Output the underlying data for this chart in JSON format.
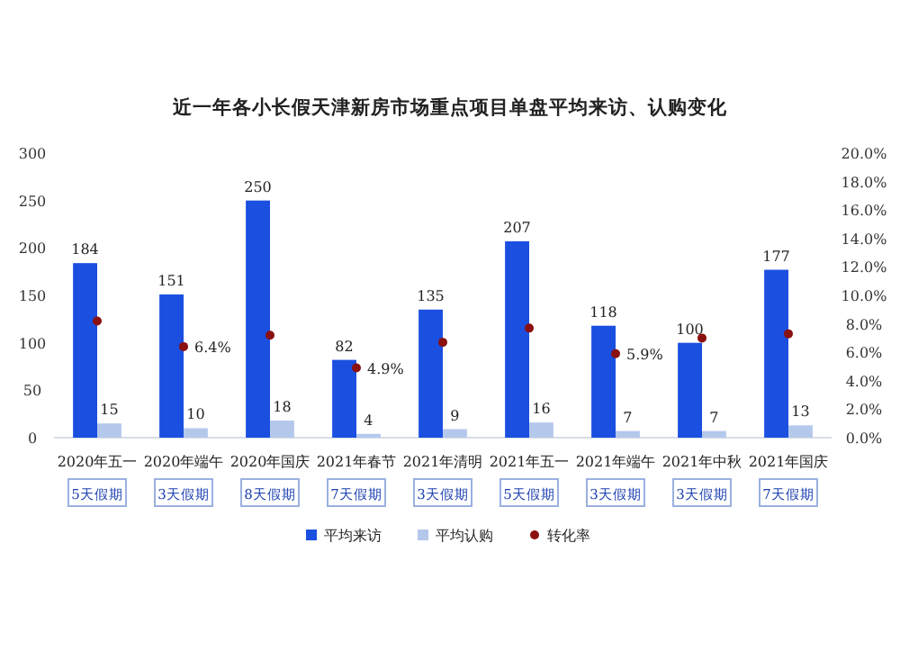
{
  "chart_data": {
    "type": "bar",
    "title": "近一年各小长假天津新房市场重点项目单盘平均来访、认购变化",
    "categories": [
      "2020年五一",
      "2020年端午",
      "2020年国庆",
      "2021年春节",
      "2021年清明",
      "2021年五一",
      "2021年端午",
      "2021年中秋",
      "2021年国庆"
    ],
    "annotations": [
      "5天假期",
      "3天假期",
      "8天假期",
      "7天假期",
      "3天假期",
      "5天假期",
      "3天假期",
      "3天假期",
      "7天假期"
    ],
    "series": [
      {
        "name": "平均来访",
        "color": "#1a4fe0",
        "values": [
          184,
          151,
          250,
          82,
          135,
          207,
          118,
          100,
          177
        ]
      },
      {
        "name": "平均认购",
        "color": "#b4c8ec",
        "values": [
          15,
          10,
          18,
          4,
          9,
          16,
          7,
          7,
          13
        ]
      },
      {
        "name": "转化率",
        "color": "#8b1010",
        "type": "scatter",
        "axis": "y2",
        "values": [
          8.2,
          6.4,
          7.2,
          4.9,
          6.7,
          7.7,
          5.9,
          7.0,
          7.3
        ],
        "value_labels": [
          null,
          "6.4%",
          null,
          "4.9%",
          null,
          null,
          "5.9%",
          null,
          null
        ]
      }
    ],
    "data_labels": true,
    "ylim": [
      0,
      300
    ],
    "yticks": [
      0,
      50,
      100,
      150,
      200,
      250,
      300
    ],
    "y2lim": [
      0,
      20
    ],
    "y2ticks": [
      {
        "value": 0,
        "label": "0.0%"
      },
      {
        "value": 2,
        "label": "2.0%"
      },
      {
        "value": 4,
        "label": "4.0%"
      },
      {
        "value": 6,
        "label": "6.0%"
      },
      {
        "value": 8,
        "label": "8.0%"
      },
      {
        "value": 10,
        "label": "10.0%"
      },
      {
        "value": 12,
        "label": "12.0%"
      },
      {
        "value": 14,
        "label": "14.0%"
      },
      {
        "value": 16,
        "label": "16.0%"
      },
      {
        "value": 18,
        "label": "18.0%"
      },
      {
        "value": 20,
        "label": "20.0%"
      }
    ],
    "legend": "bottom",
    "grid": false
  }
}
